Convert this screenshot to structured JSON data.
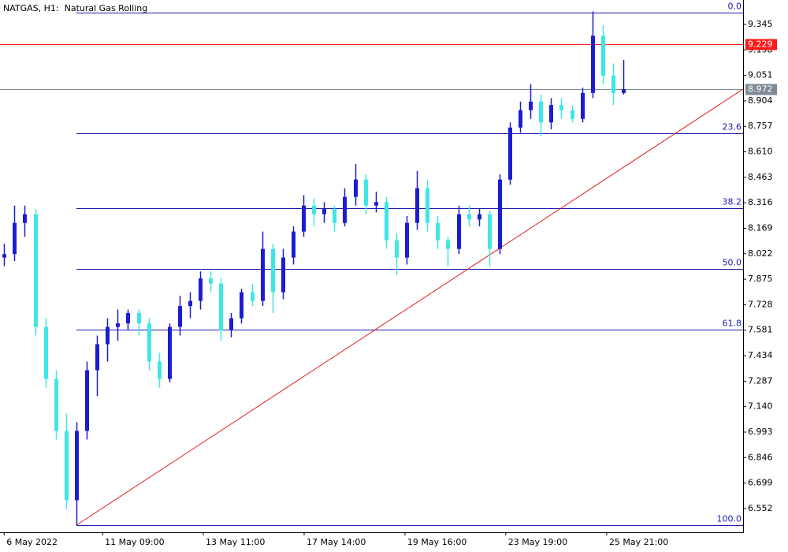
{
  "chart_data": {
    "type": "candlestick",
    "title": "NATGAS, H1:  Natural Gas Rolling",
    "x": [
      0,
      1,
      2,
      3,
      4,
      5,
      6,
      7,
      8,
      9,
      10,
      11,
      12,
      13,
      14,
      15,
      16,
      17,
      18,
      19,
      20,
      21,
      22,
      23,
      24,
      25,
      26,
      27,
      28,
      29,
      30,
      31,
      32,
      33,
      34,
      35,
      36,
      37,
      38,
      39,
      40,
      41,
      42,
      43,
      44,
      45,
      46,
      47,
      48,
      49,
      50,
      51,
      52,
      53,
      54,
      55,
      56,
      57,
      58,
      59,
      60
    ],
    "open": [
      8.0,
      8.02,
      8.2,
      8.25,
      7.6,
      7.3,
      7.0,
      6.6,
      7.0,
      7.35,
      7.5,
      7.6,
      7.62,
      7.68,
      7.62,
      7.4,
      7.3,
      7.6,
      7.72,
      7.75,
      7.88,
      7.85,
      7.58,
      7.65,
      7.8,
      7.75,
      8.05,
      7.8,
      8.0,
      8.15,
      8.3,
      8.25,
      8.28,
      8.2,
      8.35,
      8.45,
      8.3,
      8.32,
      8.1,
      8.0,
      8.2,
      8.4,
      8.2,
      8.1,
      8.05,
      8.25,
      8.22,
      8.25,
      8.05,
      8.45,
      8.75,
      8.85,
      8.9,
      8.78,
      8.88,
      8.85,
      8.8,
      8.95,
      9.28,
      9.05,
      8.95
    ],
    "high": [
      8.08,
      8.3,
      8.3,
      8.28,
      7.65,
      7.35,
      7.1,
      7.05,
      7.4,
      7.55,
      7.65,
      7.7,
      7.7,
      7.7,
      7.65,
      7.45,
      7.62,
      7.78,
      7.8,
      7.92,
      7.92,
      7.88,
      7.68,
      7.82,
      7.85,
      8.15,
      8.08,
      8.05,
      8.18,
      8.36,
      8.34,
      8.32,
      8.3,
      8.4,
      8.54,
      8.48,
      8.38,
      8.35,
      8.14,
      8.24,
      8.5,
      8.45,
      8.24,
      8.12,
      8.3,
      8.3,
      8.28,
      8.27,
      8.48,
      8.78,
      8.9,
      9.0,
      8.94,
      8.92,
      8.92,
      8.88,
      8.98,
      9.42,
      9.34,
      9.12,
      9.14
    ],
    "low": [
      7.95,
      7.98,
      8.12,
      7.55,
      7.25,
      6.95,
      6.55,
      6.456,
      6.95,
      7.2,
      7.4,
      7.52,
      7.58,
      7.55,
      7.35,
      7.25,
      7.28,
      7.55,
      7.65,
      7.7,
      7.8,
      7.52,
      7.54,
      7.62,
      7.72,
      7.72,
      7.68,
      7.76,
      7.96,
      8.12,
      8.18,
      8.2,
      8.15,
      8.18,
      8.3,
      8.25,
      8.26,
      8.05,
      7.9,
      7.96,
      8.16,
      8.15,
      8.05,
      7.95,
      8.02,
      8.18,
      8.18,
      7.95,
      8.02,
      8.42,
      8.72,
      8.8,
      8.7,
      8.74,
      8.8,
      8.78,
      8.78,
      8.92,
      9.0,
      8.88,
      8.94
    ],
    "close": [
      8.02,
      8.2,
      8.25,
      7.6,
      7.3,
      7.0,
      6.6,
      7.0,
      7.35,
      7.5,
      7.6,
      7.62,
      7.68,
      7.62,
      7.4,
      7.3,
      7.6,
      7.72,
      7.75,
      7.88,
      7.85,
      7.58,
      7.65,
      7.8,
      7.75,
      8.05,
      7.8,
      8.0,
      8.15,
      8.3,
      8.25,
      8.28,
      8.2,
      8.35,
      8.45,
      8.3,
      8.32,
      8.1,
      8.0,
      8.2,
      8.4,
      8.2,
      8.1,
      8.05,
      8.25,
      8.22,
      8.25,
      8.05,
      8.45,
      8.75,
      8.85,
      8.9,
      8.78,
      8.88,
      8.85,
      8.8,
      8.95,
      9.28,
      9.05,
      8.95,
      8.972
    ],
    "up_color": "#1c1cd0",
    "down_color": "#3ee6e6",
    "xlim": [
      -0.4,
      71.6
    ],
    "ylim": [
      6.415,
      9.486
    ],
    "xticks": [
      {
        "value": 0,
        "label": "6 May 2022"
      },
      {
        "value": 9.54,
        "label": "11 May 09:00"
      },
      {
        "value": 19.3,
        "label": "13 May 11:00"
      },
      {
        "value": 29.07,
        "label": "17 May 14:00"
      },
      {
        "value": 38.84,
        "label": "19 May 16:00"
      },
      {
        "value": 48.6,
        "label": "23 May 19:00"
      },
      {
        "value": 58.38,
        "label": "25 May 21:00"
      }
    ],
    "yticks": [
      9.345,
      9.198,
      9.051,
      8.904,
      8.757,
      {
        "value": 8.61,
        "label": "8.610"
      },
      8.463,
      8.316,
      8.169,
      8.022,
      7.875,
      7.728,
      7.581,
      7.434,
      7.287,
      {
        "value": 7.14,
        "label": "7.140"
      },
      6.993,
      6.846,
      6.699,
      6.552
    ],
    "fib": {
      "color": "#1a1ab0",
      "x_start": 7,
      "levels": [
        {
          "label": "0.0",
          "value": 9.413
        },
        {
          "label": "23.6",
          "value": 8.715
        },
        {
          "label": "38.2",
          "value": 8.283
        },
        {
          "label": "50.0",
          "value": 7.934
        },
        {
          "label": "61.8",
          "value": 7.586
        },
        {
          "label": "100.0",
          "value": 6.456
        }
      ]
    },
    "trendline": {
      "color": "#e02020",
      "x": [
        7,
        71.6
      ],
      "y": [
        6.456,
        8.972
      ]
    },
    "price_lines": [
      {
        "value": 9.229,
        "color": "#ff1a1a"
      },
      {
        "value": 8.972,
        "color": "#7d8a96"
      }
    ]
  }
}
